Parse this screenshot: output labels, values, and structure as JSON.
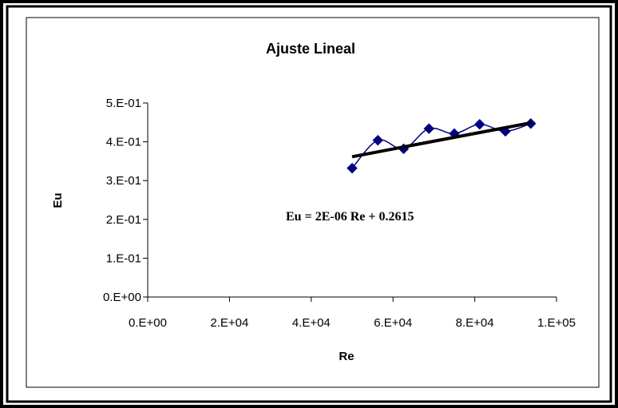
{
  "chart_data": {
    "type": "scatter",
    "title": "Ajuste Lineal",
    "xlabel": "Re",
    "ylabel": "Eu",
    "xlim": [
      0,
      100000
    ],
    "ylim": [
      0,
      0.5
    ],
    "xticks": [
      0,
      20000,
      40000,
      60000,
      80000,
      100000
    ],
    "xtick_labels": [
      "0.E+00",
      "2.E+04",
      "4.E+04",
      "6.E+04",
      "8.E+04",
      "1.E+05"
    ],
    "yticks": [
      0,
      0.1,
      0.2,
      0.3,
      0.4,
      0.5
    ],
    "ytick_labels": [
      "0.E+00",
      "1.E-01",
      "2.E-01",
      "3.E-01",
      "4.E-01",
      "5.E-01"
    ],
    "grid": false,
    "legend": "none",
    "series": [
      {
        "marker": "diamond",
        "smoothed_line": true,
        "color": "#000080",
        "x": [
          50000,
          56300,
          62600,
          68800,
          75000,
          81200,
          87500,
          93700
        ],
        "y": [
          0.332,
          0.404,
          0.382,
          0.434,
          0.421,
          0.445,
          0.427,
          0.447
        ]
      }
    ],
    "trendline": {
      "slope": 2e-06,
      "intercept": 0.2615,
      "x_range": [
        50000,
        93700
      ],
      "color": "#000000",
      "label": "Eu = 2E-06 Re + 0.2615"
    }
  }
}
